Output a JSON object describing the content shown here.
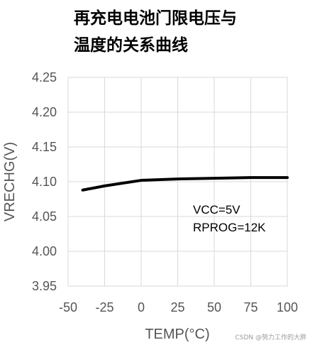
{
  "chart_data": {
    "type": "line",
    "title_lines": [
      "再充电电池门限电压与",
      "温度的关系曲线"
    ],
    "xlabel": "TEMP(°C)",
    "ylabel": "VRECHG(V)",
    "xlim": [
      -50,
      100
    ],
    "ylim": [
      3.95,
      4.25
    ],
    "x_ticks": [
      -50,
      -25,
      0,
      25,
      50,
      75,
      100
    ],
    "y_ticks": [
      3.95,
      4.0,
      4.05,
      4.1,
      4.15,
      4.2,
      4.25
    ],
    "x_tick_labels": [
      "-50",
      "-25",
      "0",
      "25",
      "50",
      "75",
      "100"
    ],
    "y_tick_labels": [
      "3.95",
      "4.00",
      "4.05",
      "4.10",
      "4.15",
      "4.20",
      "4.25"
    ],
    "grid": true,
    "series": [
      {
        "color": "#000000",
        "x": [
          -40,
          -25,
          0,
          25,
          50,
          75,
          100
        ],
        "y": [
          4.088,
          4.094,
          4.102,
          4.104,
          4.105,
          4.106,
          4.106
        ]
      }
    ],
    "annotations": [
      "VCC=5V",
      "RPROG=12K"
    ],
    "watermark": "CSDN @努力工作的大胖"
  }
}
